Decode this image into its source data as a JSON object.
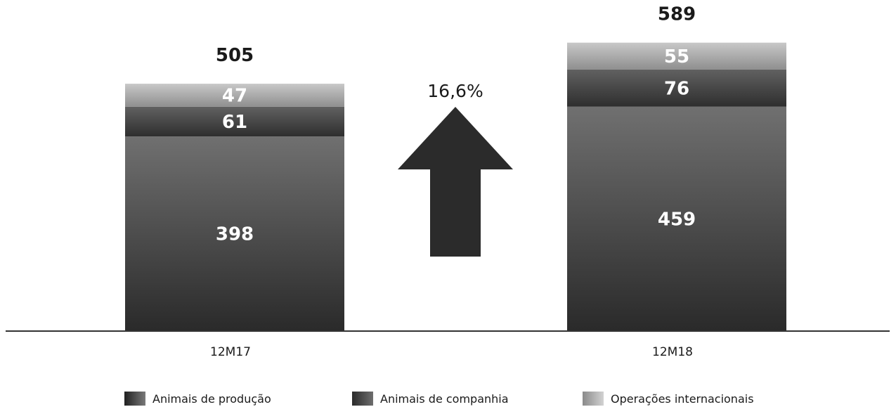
{
  "chart_data": {
    "type": "bar",
    "stacked": true,
    "categories": [
      "12M17",
      "12M18"
    ],
    "series": [
      {
        "name": "Animais de produção",
        "values": [
          398,
          459
        ]
      },
      {
        "name": "Animais de companhia",
        "values": [
          61,
          76
        ]
      },
      {
        "name": "Operações internacionais",
        "values": [
          47,
          55
        ]
      }
    ],
    "totals": [
      505,
      589
    ],
    "annotation": "16,6%",
    "ylim": [
      0,
      620
    ],
    "grid": false,
    "legend_position": "bottom"
  },
  "colors": {
    "series": [
      [
        "#2a2a2a",
        "#707070"
      ],
      [
        "#2e2e2e",
        "#616161"
      ],
      [
        "#8f8f8f",
        "#c8c8c8"
      ]
    ],
    "arrow": "#2b2b2b",
    "axis": "#333333"
  }
}
